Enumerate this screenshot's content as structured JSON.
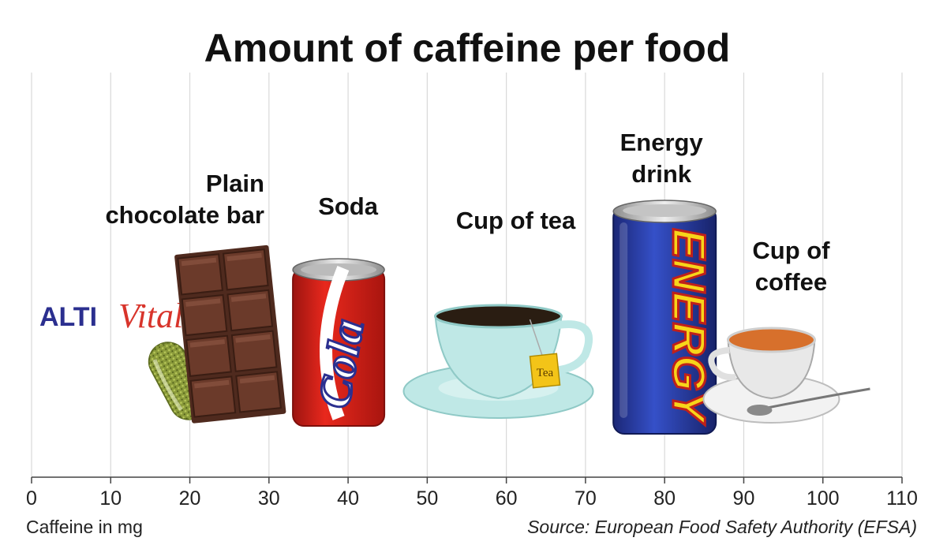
{
  "chart_data": {
    "type": "scatter",
    "title": "Amount of caffeine per food",
    "xlabel": "Caffeine in mg",
    "xlim": [
      0,
      110
    ],
    "xticks": [
      0,
      10,
      20,
      30,
      40,
      50,
      60,
      70,
      80,
      90,
      100,
      110
    ],
    "grid": true,
    "source": "Source: European Food Safety Authority (EFSA)",
    "points": [
      {
        "label_lines": [
          "Plain",
          "chocolate bar"
        ],
        "x": 25,
        "icon": "chocolate-bar-icon"
      },
      {
        "label_lines": [
          "Soda"
        ],
        "x": 40,
        "icon": "cola-can-icon"
      },
      {
        "label_lines": [
          "Cup of tea"
        ],
        "x": 55,
        "icon": "tea-cup-icon"
      },
      {
        "label_lines": [
          "Energy",
          "drink"
        ],
        "x": 80,
        "icon": "energy-drink-can-icon"
      },
      {
        "label_lines": [
          "Cup of",
          "coffee"
        ],
        "x": 90,
        "icon": "coffee-cup-icon"
      }
    ],
    "colors": {
      "grid": "#d9d9d9",
      "axis": "#444444",
      "chocolate": "#6b3a2a",
      "cola": "#e2231a",
      "tea_cup": "#bfe8e6",
      "energy": "#2a3fa8",
      "logo_blue": "#2b2f8f",
      "logo_red": "#d8342b"
    }
  },
  "logo": {
    "part1": "ALTI",
    "part2": "Vital"
  }
}
